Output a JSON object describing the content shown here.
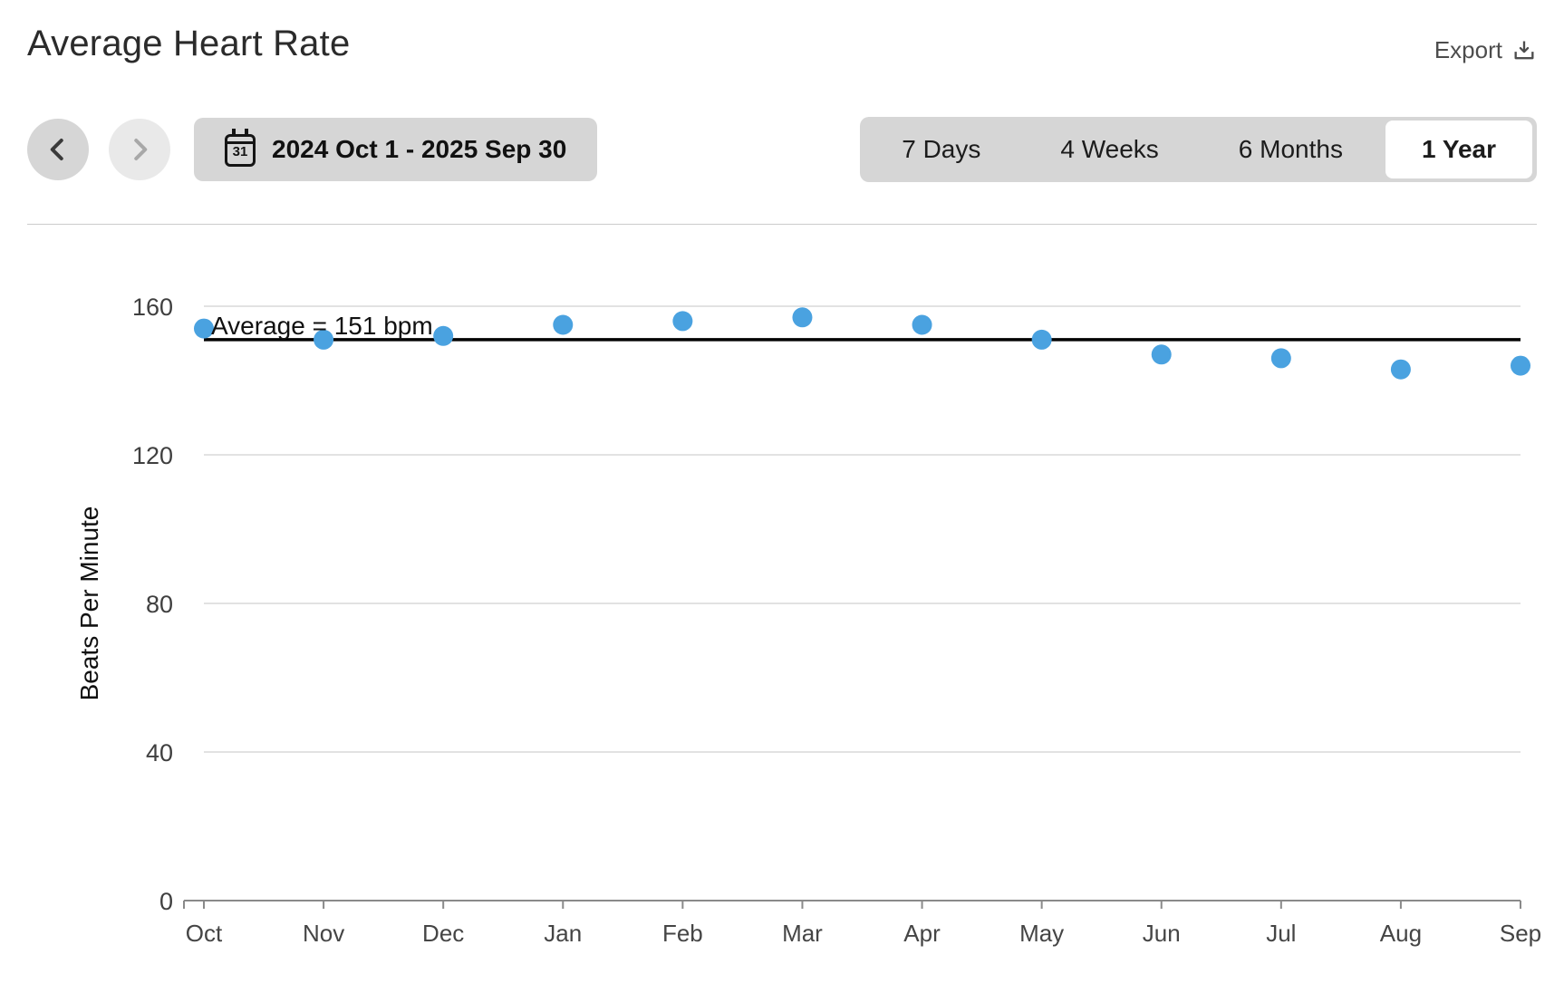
{
  "header": {
    "title": "Average Heart Rate",
    "export_label": "Export"
  },
  "controls": {
    "date_range_label": "2024 Oct 1 - 2025 Sep 30",
    "calendar_day": "31",
    "ranges": [
      {
        "label": "7 Days",
        "selected": false
      },
      {
        "label": "4 Weeks",
        "selected": false
      },
      {
        "label": "6 Months",
        "selected": false
      },
      {
        "label": "1 Year",
        "selected": true
      }
    ]
  },
  "chart_data": {
    "type": "scatter",
    "title": "Average Heart Rate",
    "xlabel": "",
    "ylabel": "Beats Per Minute",
    "categories": [
      "Oct",
      "Nov",
      "Dec",
      "Jan",
      "Feb",
      "Mar",
      "Apr",
      "May",
      "Jun",
      "Jul",
      "Aug",
      "Sep"
    ],
    "series": [
      {
        "name": "Average Heart Rate (bpm)",
        "values": [
          154,
          151,
          152,
          155,
          156,
          157,
          155,
          151,
          147,
          146,
          143,
          144
        ]
      }
    ],
    "yticks": [
      0,
      40,
      80,
      120,
      160
    ],
    "ylim": [
      0,
      160
    ],
    "grid": true,
    "legend": false,
    "average_line": {
      "value": 151,
      "label": "Average = 151 bpm"
    },
    "point_color": "#4aa2e0",
    "average_line_color": "#000000",
    "gridline_color": "#d9d9d9",
    "axis_color": "#8a8a8a"
  }
}
